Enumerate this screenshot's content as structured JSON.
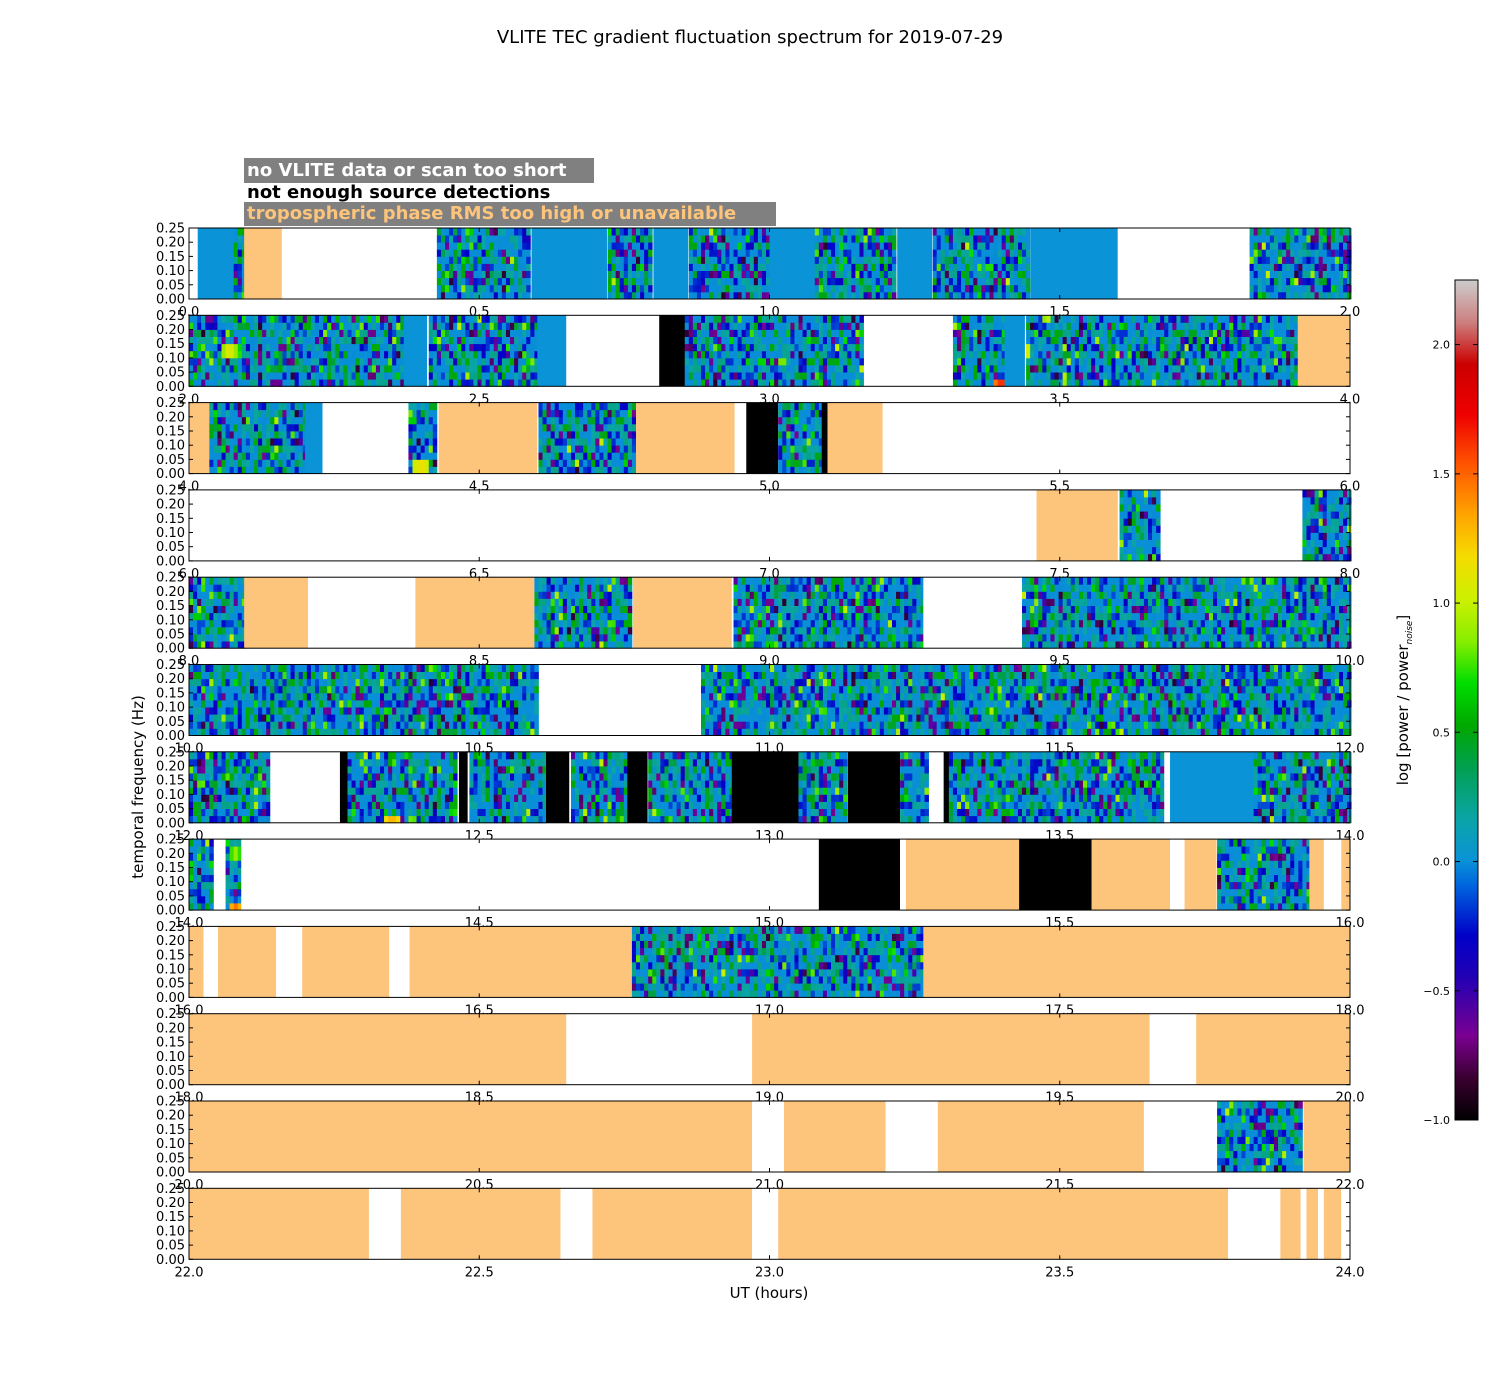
{
  "chart_data": {
    "type": "heatmap",
    "title": "VLITE TEC gradient fluctuation spectrum for 2019-07-29",
    "xlabel": "UT (hours)",
    "ylabel": "temporal frequency (Hz)",
    "ylim": [
      0,
      0.25
    ],
    "yticks": [
      "0.00",
      "0.05",
      "0.10",
      "0.15",
      "0.20",
      "0.25"
    ],
    "legend": {
      "location": "top-left",
      "entries": [
        {
          "label": "no VLITE data or scan too short",
          "color": "#ffffff"
        },
        {
          "label": "not enough source detections",
          "color": "#000000"
        },
        {
          "label": "tropospheric phase RMS too high or unavailable",
          "color": "#fdc47c"
        }
      ]
    },
    "colorbar": {
      "label_main": "log [power / power",
      "label_sub": "noise",
      "label_end": "]",
      "range": [
        -1.0,
        2.25
      ],
      "ticks": [
        {
          "value": -1.0,
          "label": "−1.0"
        },
        {
          "value": -0.5,
          "label": "−0.5"
        },
        {
          "value": 0.0,
          "label": "0.0"
        },
        {
          "value": 0.5,
          "label": "0.5"
        },
        {
          "value": 1.0,
          "label": "1.0"
        },
        {
          "value": 1.5,
          "label": "1.5"
        },
        {
          "value": 2.0,
          "label": "2.0"
        }
      ]
    },
    "colors": {
      "white": "#ffffff",
      "black": "#000000",
      "tropo": "#fdc47c",
      "quiet": "#0a93d6",
      "legend_box": "#808080"
    },
    "rows": [
      {
        "xticks": [
          "0.0",
          "0.5",
          "1.0",
          "1.5",
          "2.0"
        ],
        "segments": [
          {
            "s": 0.0,
            "e": 0.015,
            "k": "white"
          },
          {
            "s": 0.015,
            "e": 0.08,
            "k": "quiet"
          },
          {
            "s": 0.08,
            "e": 0.095,
            "k": "data"
          },
          {
            "s": 0.095,
            "e": 0.16,
            "k": "tropo"
          },
          {
            "s": 0.16,
            "e": 0.425,
            "k": "white"
          },
          {
            "s": 0.425,
            "e": 0.59,
            "k": "data"
          },
          {
            "s": 0.59,
            "e": 0.72,
            "k": "quiet"
          },
          {
            "s": 0.72,
            "e": 0.8,
            "k": "data"
          },
          {
            "s": 0.8,
            "e": 0.86,
            "k": "quiet"
          },
          {
            "s": 0.86,
            "e": 1.0,
            "k": "data"
          },
          {
            "s": 1.0,
            "e": 1.08,
            "k": "quiet"
          },
          {
            "s": 1.08,
            "e": 1.22,
            "k": "data"
          },
          {
            "s": 1.22,
            "e": 1.28,
            "k": "quiet"
          },
          {
            "s": 1.28,
            "e": 1.45,
            "k": "data"
          },
          {
            "s": 1.45,
            "e": 1.6,
            "k": "quiet"
          },
          {
            "s": 1.6,
            "e": 1.83,
            "k": "white"
          },
          {
            "s": 1.83,
            "e": 2.0,
            "k": "data"
          }
        ]
      },
      {
        "xticks": [
          "2.0",
          "2.5",
          "3.0",
          "3.5",
          "4.0"
        ],
        "segments": [
          {
            "s": 2.0,
            "e": 2.37,
            "k": "data"
          },
          {
            "s": 2.37,
            "e": 2.41,
            "k": "quiet"
          },
          {
            "s": 2.41,
            "e": 2.6,
            "k": "data"
          },
          {
            "s": 2.6,
            "e": 2.65,
            "k": "quiet"
          },
          {
            "s": 2.65,
            "e": 2.81,
            "k": "white"
          },
          {
            "s": 2.81,
            "e": 2.855,
            "k": "black"
          },
          {
            "s": 2.855,
            "e": 3.165,
            "k": "data"
          },
          {
            "s": 3.165,
            "e": 3.315,
            "k": "white"
          },
          {
            "s": 3.315,
            "e": 3.405,
            "k": "data"
          },
          {
            "s": 3.405,
            "e": 3.44,
            "k": "quiet"
          },
          {
            "s": 3.44,
            "e": 3.91,
            "k": "data"
          },
          {
            "s": 3.91,
            "e": 4.0,
            "k": "tropo"
          }
        ]
      },
      {
        "xticks": [
          "4.0",
          "4.5",
          "5.0",
          "5.5",
          "6.0"
        ],
        "segments": [
          {
            "s": 4.0,
            "e": 4.035,
            "k": "tropo"
          },
          {
            "s": 4.035,
            "e": 4.2,
            "k": "data"
          },
          {
            "s": 4.2,
            "e": 4.23,
            "k": "quiet"
          },
          {
            "s": 4.23,
            "e": 4.375,
            "k": "white"
          },
          {
            "s": 4.375,
            "e": 4.43,
            "k": "data"
          },
          {
            "s": 4.43,
            "e": 4.6,
            "k": "tropo"
          },
          {
            "s": 4.6,
            "e": 4.77,
            "k": "data"
          },
          {
            "s": 4.77,
            "e": 4.94,
            "k": "tropo"
          },
          {
            "s": 4.94,
            "e": 4.96,
            "k": "white"
          },
          {
            "s": 4.96,
            "e": 5.015,
            "k": "black"
          },
          {
            "s": 5.015,
            "e": 5.09,
            "k": "data"
          },
          {
            "s": 5.09,
            "e": 5.1,
            "k": "black"
          },
          {
            "s": 5.1,
            "e": 5.195,
            "k": "tropo"
          },
          {
            "s": 5.195,
            "e": 6.0,
            "k": "white"
          }
        ]
      },
      {
        "xticks": [
          "6.0",
          "6.5",
          "7.0",
          "7.5",
          "8.0"
        ],
        "segments": [
          {
            "s": 6.0,
            "e": 7.46,
            "k": "white"
          },
          {
            "s": 7.46,
            "e": 7.6,
            "k": "tropo"
          },
          {
            "s": 7.6,
            "e": 7.675,
            "k": "data"
          },
          {
            "s": 7.675,
            "e": 7.915,
            "k": "white"
          },
          {
            "s": 7.915,
            "e": 8.0,
            "k": "data"
          }
        ]
      },
      {
        "xticks": [
          "8.0",
          "8.5",
          "9.0",
          "9.5",
          "10.0"
        ],
        "segments": [
          {
            "s": 8.0,
            "e": 8.095,
            "k": "data"
          },
          {
            "s": 8.095,
            "e": 8.205,
            "k": "tropo"
          },
          {
            "s": 8.205,
            "e": 8.39,
            "k": "white"
          },
          {
            "s": 8.39,
            "e": 8.595,
            "k": "tropo"
          },
          {
            "s": 8.595,
            "e": 8.765,
            "k": "data"
          },
          {
            "s": 8.765,
            "e": 8.935,
            "k": "tropo"
          },
          {
            "s": 8.935,
            "e": 9.265,
            "k": "data"
          },
          {
            "s": 9.265,
            "e": 9.435,
            "k": "white"
          },
          {
            "s": 9.435,
            "e": 10.0,
            "k": "data"
          }
        ]
      },
      {
        "xticks": [
          "10.0",
          "10.5",
          "11.0",
          "11.5",
          "12.0"
        ],
        "segments": [
          {
            "s": 10.0,
            "e": 10.605,
            "k": "data"
          },
          {
            "s": 10.605,
            "e": 10.88,
            "k": "white"
          },
          {
            "s": 10.88,
            "e": 12.0,
            "k": "data"
          }
        ]
      },
      {
        "xticks": [
          "12.0",
          "12.5",
          "13.0",
          "13.5",
          "14.0"
        ],
        "segments": [
          {
            "s": 12.0,
            "e": 12.14,
            "k": "data"
          },
          {
            "s": 12.14,
            "e": 12.26,
            "k": "white"
          },
          {
            "s": 12.26,
            "e": 12.275,
            "k": "black"
          },
          {
            "s": 12.275,
            "e": 12.465,
            "k": "data"
          },
          {
            "s": 12.465,
            "e": 12.48,
            "k": "black"
          },
          {
            "s": 12.48,
            "e": 12.615,
            "k": "data"
          },
          {
            "s": 12.615,
            "e": 12.655,
            "k": "black"
          },
          {
            "s": 12.655,
            "e": 12.755,
            "k": "data"
          },
          {
            "s": 12.755,
            "e": 12.79,
            "k": "black"
          },
          {
            "s": 12.79,
            "e": 12.935,
            "k": "data"
          },
          {
            "s": 12.935,
            "e": 13.05,
            "k": "black"
          },
          {
            "s": 13.05,
            "e": 13.135,
            "k": "data"
          },
          {
            "s": 13.135,
            "e": 13.225,
            "k": "black"
          },
          {
            "s": 13.225,
            "e": 13.275,
            "k": "data"
          },
          {
            "s": 13.275,
            "e": 13.3,
            "k": "white"
          },
          {
            "s": 13.3,
            "e": 13.31,
            "k": "black"
          },
          {
            "s": 13.31,
            "e": 13.68,
            "k": "data"
          },
          {
            "s": 13.68,
            "e": 13.69,
            "k": "white"
          },
          {
            "s": 13.69,
            "e": 13.835,
            "k": "quiet"
          },
          {
            "s": 13.835,
            "e": 14.0,
            "k": "data"
          }
        ]
      },
      {
        "xticks": [
          "14.0",
          "14.5",
          "15.0",
          "15.5",
          "16.0"
        ],
        "segments": [
          {
            "s": 14.0,
            "e": 14.045,
            "k": "data"
          },
          {
            "s": 14.045,
            "e": 14.06,
            "k": "white"
          },
          {
            "s": 14.06,
            "e": 14.09,
            "k": "data"
          },
          {
            "s": 14.09,
            "e": 15.085,
            "k": "white"
          },
          {
            "s": 15.085,
            "e": 15.225,
            "k": "black"
          },
          {
            "s": 15.225,
            "e": 15.235,
            "k": "white"
          },
          {
            "s": 15.235,
            "e": 15.43,
            "k": "tropo"
          },
          {
            "s": 15.43,
            "e": 15.555,
            "k": "black"
          },
          {
            "s": 15.555,
            "e": 15.69,
            "k": "tropo"
          },
          {
            "s": 15.69,
            "e": 15.715,
            "k": "white"
          },
          {
            "s": 15.715,
            "e": 15.77,
            "k": "tropo"
          },
          {
            "s": 15.77,
            "e": 15.93,
            "k": "data"
          },
          {
            "s": 15.93,
            "e": 15.955,
            "k": "tropo"
          },
          {
            "s": 15.955,
            "e": 15.985,
            "k": "white"
          },
          {
            "s": 15.985,
            "e": 16.0,
            "k": "tropo"
          }
        ]
      },
      {
        "xticks": [
          "16.0",
          "16.5",
          "17.0",
          "17.5",
          "18.0"
        ],
        "segments": [
          {
            "s": 16.0,
            "e": 16.025,
            "k": "tropo"
          },
          {
            "s": 16.025,
            "e": 16.05,
            "k": "white"
          },
          {
            "s": 16.05,
            "e": 16.15,
            "k": "tropo"
          },
          {
            "s": 16.15,
            "e": 16.195,
            "k": "white"
          },
          {
            "s": 16.195,
            "e": 16.345,
            "k": "tropo"
          },
          {
            "s": 16.345,
            "e": 16.38,
            "k": "white"
          },
          {
            "s": 16.38,
            "e": 16.765,
            "k": "tropo"
          },
          {
            "s": 16.765,
            "e": 17.265,
            "k": "data"
          },
          {
            "s": 17.265,
            "e": 18.0,
            "k": "tropo"
          }
        ]
      },
      {
        "xticks": [
          "18.0",
          "18.5",
          "19.0",
          "19.5",
          "20.0"
        ],
        "segments": [
          {
            "s": 18.0,
            "e": 18.65,
            "k": "tropo"
          },
          {
            "s": 18.65,
            "e": 18.97,
            "k": "white"
          },
          {
            "s": 18.97,
            "e": 19.655,
            "k": "tropo"
          },
          {
            "s": 19.655,
            "e": 19.735,
            "k": "white"
          },
          {
            "s": 19.735,
            "e": 20.0,
            "k": "tropo"
          }
        ]
      },
      {
        "xticks": [
          "20.0",
          "20.5",
          "21.0",
          "21.5",
          "22.0"
        ],
        "segments": [
          {
            "s": 20.0,
            "e": 20.97,
            "k": "tropo"
          },
          {
            "s": 20.97,
            "e": 21.025,
            "k": "white"
          },
          {
            "s": 21.025,
            "e": 21.2,
            "k": "tropo"
          },
          {
            "s": 21.2,
            "e": 21.29,
            "k": "white"
          },
          {
            "s": 21.29,
            "e": 21.645,
            "k": "tropo"
          },
          {
            "s": 21.645,
            "e": 21.77,
            "k": "white"
          },
          {
            "s": 21.77,
            "e": 21.92,
            "k": "data"
          },
          {
            "s": 21.92,
            "e": 22.0,
            "k": "tropo"
          }
        ]
      },
      {
        "xticks": [
          "22.0",
          "22.5",
          "23.0",
          "23.5",
          "24.0"
        ],
        "segments": [
          {
            "s": 22.0,
            "e": 22.31,
            "k": "tropo"
          },
          {
            "s": 22.31,
            "e": 22.365,
            "k": "white"
          },
          {
            "s": 22.365,
            "e": 22.64,
            "k": "tropo"
          },
          {
            "s": 22.64,
            "e": 22.695,
            "k": "white"
          },
          {
            "s": 22.695,
            "e": 22.97,
            "k": "tropo"
          },
          {
            "s": 22.97,
            "e": 23.015,
            "k": "white"
          },
          {
            "s": 23.015,
            "e": 23.79,
            "k": "tropo"
          },
          {
            "s": 23.79,
            "e": 23.88,
            "k": "white"
          },
          {
            "s": 23.88,
            "e": 23.915,
            "k": "tropo"
          },
          {
            "s": 23.915,
            "e": 23.925,
            "k": "white"
          },
          {
            "s": 23.925,
            "e": 23.945,
            "k": "tropo"
          },
          {
            "s": 23.945,
            "e": 23.955,
            "k": "white"
          },
          {
            "s": 23.955,
            "e": 23.985,
            "k": "tropo"
          },
          {
            "s": 23.985,
            "e": 24.0,
            "k": "white"
          }
        ]
      }
    ],
    "hotspots": [
      {
        "h": 3.4,
        "f": 0.012,
        "v": 1.9
      },
      {
        "h": 3.43,
        "f": 0.045,
        "v": 1.2
      },
      {
        "h": 3.44,
        "f": 0.13,
        "v": 1.3
      },
      {
        "h": 2.07,
        "f": 0.12,
        "v": 1.3
      },
      {
        "h": 4.4,
        "f": 0.025,
        "v": 1.4
      },
      {
        "h": 12.35,
        "f": 0.012,
        "v": 1.6
      },
      {
        "h": 14.08,
        "f": 0.012,
        "v": 1.7
      },
      {
        "h": 14.08,
        "f": 0.2,
        "v": 1.1
      }
    ]
  }
}
